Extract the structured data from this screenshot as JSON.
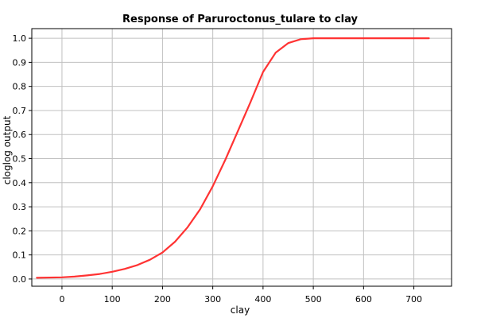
{
  "chart_data": {
    "type": "line",
    "title": "Response of Paruroctonus_tulare to clay",
    "xlabel": "clay",
    "ylabel": "cloglog output",
    "xlim": [
      -60,
      775
    ],
    "ylim": [
      -0.03,
      1.04
    ],
    "x_ticks": [
      0,
      100,
      200,
      300,
      400,
      500,
      600,
      700
    ],
    "y_ticks": [
      0.0,
      0.1,
      0.2,
      0.3,
      0.4,
      0.5,
      0.6,
      0.7,
      0.8,
      0.9,
      1.0
    ],
    "x_tick_labels": [
      "0",
      "100",
      "200",
      "300",
      "400",
      "500",
      "600",
      "700"
    ],
    "y_tick_labels": [
      "0.0",
      "0.1",
      "0.2",
      "0.3",
      "0.4",
      "0.5",
      "0.6",
      "0.7",
      "0.8",
      "0.9",
      "1.0"
    ],
    "grid": true,
    "series": [
      {
        "color": "#ff3333",
        "x": [
          -50,
          0,
          25,
          50,
          75,
          100,
          125,
          150,
          175,
          200,
          225,
          250,
          275,
          300,
          325,
          350,
          375,
          400,
          425,
          450,
          475,
          500,
          550,
          600,
          650,
          700,
          730
        ],
        "y": [
          0.005,
          0.007,
          0.01,
          0.015,
          0.021,
          0.03,
          0.042,
          0.058,
          0.08,
          0.11,
          0.155,
          0.215,
          0.29,
          0.385,
          0.495,
          0.615,
          0.735,
          0.86,
          0.94,
          0.98,
          0.996,
          1.0,
          1.0,
          1.0,
          1.0,
          1.0,
          1.0
        ]
      }
    ]
  }
}
